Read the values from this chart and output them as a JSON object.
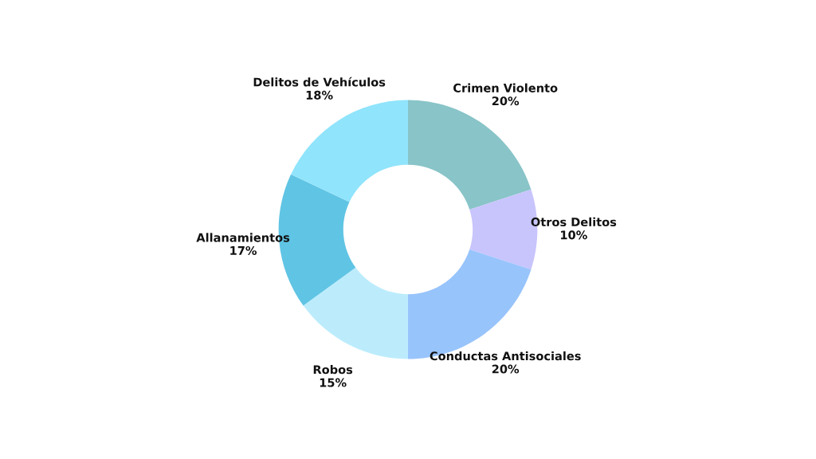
{
  "chart_data": {
    "type": "donut",
    "categories": [
      "Crimen Violento",
      "Otros Delitos",
      "Conductas Antisociales",
      "Robos",
      "Allanamientos",
      "Delitos de Vehículos"
    ],
    "values": [
      20,
      10,
      20,
      15,
      17,
      18
    ],
    "value_labels": [
      "20%",
      "10%",
      "20%",
      "15%",
      "17%",
      "18%"
    ],
    "colors": [
      "#88c4c8",
      "#c8c4fc",
      "#98c4fc",
      "#bcecfc",
      "#60c4e4",
      "#90e4fc"
    ],
    "legend": false
  }
}
